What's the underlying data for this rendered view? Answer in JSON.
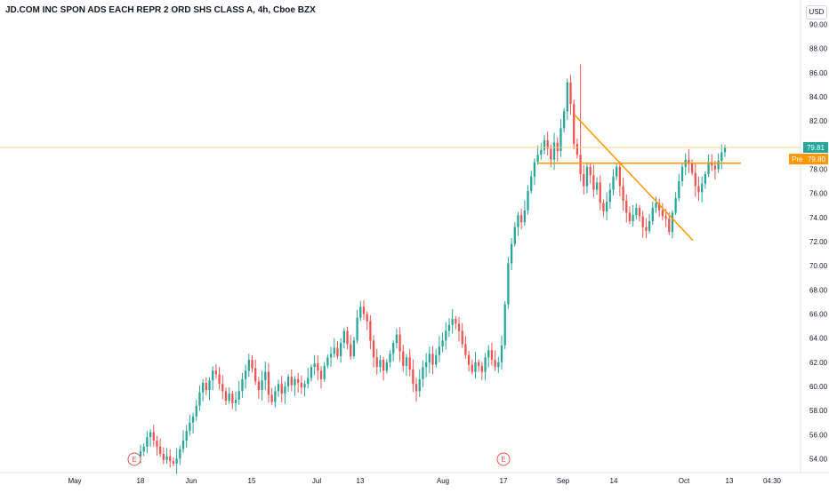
{
  "header": {
    "title": "JD.COM INC SPON ADS EACH REPR 2 ORD SHS CLASS A, 4h, Cboe BZX",
    "currency": "USD"
  },
  "price_scale": {
    "last_price_label": "79.81",
    "pre_market_tag": "Pre",
    "pre_market_price": "79.80"
  },
  "colors": {
    "up": "#26a69a",
    "down": "#ef5350",
    "trendline": "#ff9800",
    "last_price_line": "#ffcc80",
    "grid": "#f0f3fa",
    "axis_text": "#131722",
    "earnings_marker": "#ef5350"
  },
  "earnings_markers": [
    {
      "label": "E",
      "date": "May 18"
    },
    {
      "label": "E",
      "date": "Aug 17"
    }
  ],
  "chart_data": {
    "type": "candlestick",
    "title": "JD.COM INC SPON ADS EACH REPR 2 ORD SHS CLASS A, 4h, Cboe BZX",
    "x_tick_labels": [
      "May",
      "18",
      "Jun",
      "15",
      "Jul",
      "13",
      "Aug",
      "17",
      "Sep",
      "14",
      "Oct",
      "13",
      "04:30"
    ],
    "y_tick_labels": [
      "54.00",
      "56.00",
      "58.00",
      "60.00",
      "62.00",
      "64.00",
      "66.00",
      "68.00",
      "70.00",
      "72.00",
      "74.00",
      "76.00",
      "78.00",
      "80.00",
      "82.00",
      "84.00",
      "86.00",
      "88.00",
      "90.00"
    ],
    "ylim": [
      53,
      91
    ],
    "grid": false,
    "close_series": [
      54.6,
      55.0,
      55.8,
      56.2,
      55.5,
      55.0,
      54.4,
      53.9,
      54.2,
      53.8,
      53.6,
      54.0,
      54.8,
      55.5,
      56.3,
      57.0,
      57.5,
      58.4,
      59.5,
      60.3,
      59.7,
      60.5,
      61.3,
      61.0,
      60.2,
      59.6,
      58.8,
      59.4,
      58.6,
      58.9,
      59.6,
      60.6,
      61.3,
      62.2,
      61.5,
      60.4,
      59.7,
      60.5,
      61.2,
      59.3,
      58.7,
      59.6,
      60.2,
      59.4,
      60.0,
      60.8,
      60.1,
      60.6,
      60.3,
      59.9,
      60.2,
      60.7,
      61.6,
      61.9,
      61.3,
      60.6,
      61.7,
      62.4,
      62.7,
      63.2,
      62.5,
      63.6,
      64.6,
      63.5,
      62.5,
      63.8,
      65.7,
      66.6,
      66.0,
      65.4,
      63.8,
      62.4,
      61.6,
      62.2,
      61.3,
      62.0,
      62.7,
      63.6,
      64.3,
      62.9,
      61.7,
      62.4,
      61.4,
      60.2,
      59.6,
      60.6,
      61.6,
      62.0,
      62.7,
      61.8,
      62.6,
      63.3,
      63.8,
      64.6,
      65.1,
      65.6,
      65.2,
      64.6,
      63.5,
      62.6,
      61.8,
      61.2,
      62.0,
      61.7,
      61.2,
      62.4,
      63.0,
      62.2,
      61.6,
      62.0,
      63.4,
      66.8,
      70.2,
      71.8,
      73.2,
      74.2,
      73.6,
      74.6,
      76.2,
      77.4,
      78.6,
      79.2,
      79.6,
      80.4,
      79.7,
      78.8,
      80.2,
      79.5,
      81.4,
      82.8,
      85.2,
      83.4,
      80.1,
      79.2,
      77.6,
      76.6,
      78.2,
      77.5,
      76.3,
      76.9,
      75.2,
      74.5,
      75.3,
      76.3,
      77.4,
      78.2,
      76.6,
      75.4,
      74.4,
      73.7,
      74.2,
      74.8,
      74.1,
      73.2,
      72.9,
      73.7,
      74.8,
      75.2,
      74.6,
      74.1,
      73.9,
      72.8,
      74.4,
      75.6,
      77.0,
      78.2,
      78.8,
      78.5,
      77.7,
      76.6,
      76.1,
      76.8,
      77.6,
      78.6,
      78.3,
      78.0,
      78.7,
      79.4,
      79.81
    ],
    "trendlines": [
      {
        "name": "descending trendline",
        "from": [
          "Sep 1",
          82.5
        ],
        "to": [
          "Sep 29",
          72.1
        ]
      },
      {
        "name": "horizontal level",
        "from": [
          "Aug 30",
          78.5
        ],
        "to": [
          "Oct 15",
          78.5
        ]
      }
    ],
    "last_price": 79.81,
    "pre_market_price": 79.8
  }
}
